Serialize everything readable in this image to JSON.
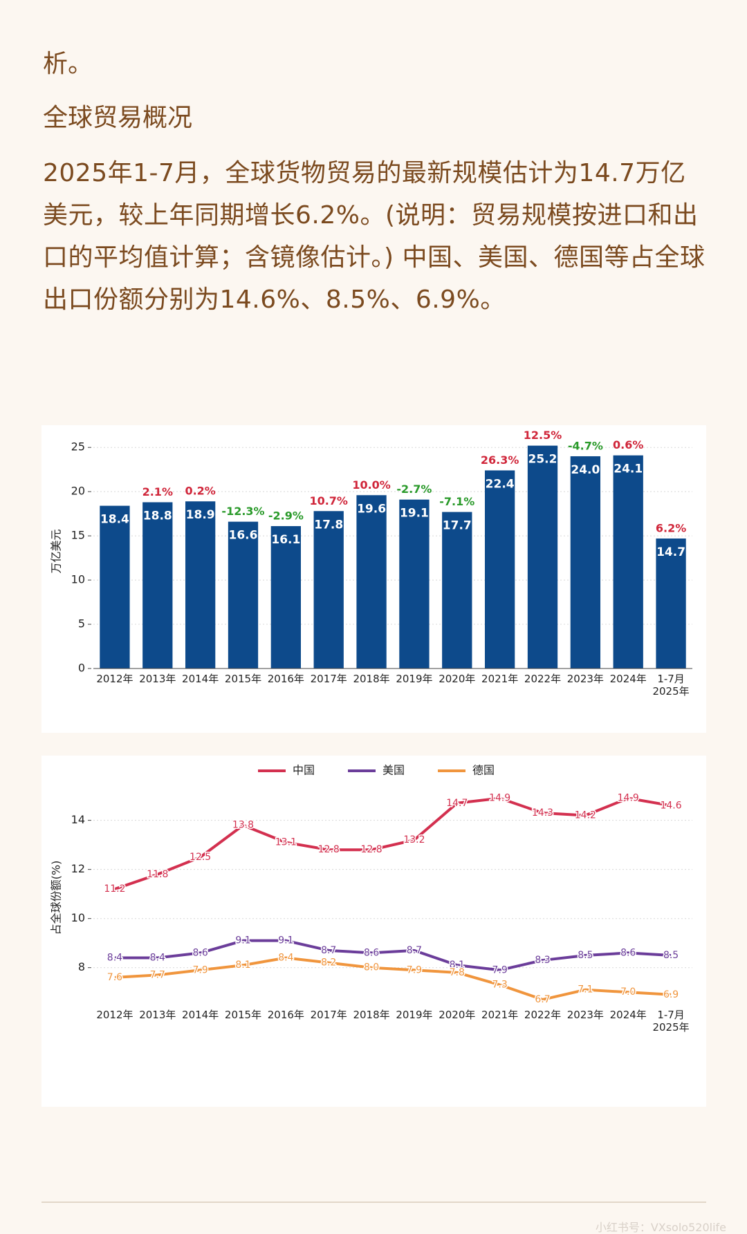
{
  "text": {
    "fragment": "析。",
    "heading": "全球贸易概况",
    "paragraph": "2025年1-7月，全球货物贸易的最新规模估计为14.7万亿美元，较上年同期增长6.2%。(说明：贸易规模按进口和出口的平均值计算；含镜像估计。) 中国、美国、德国等占全球出口份额分别为14.6%、8.5%、6.9%。"
  },
  "chart_data": [
    {
      "type": "bar",
      "ylabel": "万亿美元",
      "categories": [
        "2012年",
        "2013年",
        "2014年",
        "2015年",
        "2016年",
        "2017年",
        "2018年",
        "2019年",
        "2020年",
        "2021年",
        "2022年",
        "2023年",
        "2024年",
        "1-7月\n2025年"
      ],
      "values": [
        18.4,
        18.8,
        18.9,
        16.6,
        16.1,
        17.8,
        19.6,
        19.1,
        17.7,
        22.4,
        25.2,
        24.0,
        24.1,
        14.7
      ],
      "value_labels": [
        "18.4",
        "18.8",
        "18.9",
        "16.6",
        "16.1",
        "17.8",
        "19.6",
        "19.1",
        "17.7",
        "22.4",
        "25.2",
        "24.0",
        "24.1",
        "14.7"
      ],
      "growth": [
        null,
        2.1,
        0.2,
        -12.3,
        -2.9,
        10.7,
        10.0,
        -2.7,
        -7.1,
        26.3,
        12.5,
        -4.7,
        0.6,
        6.2
      ],
      "growth_labels": [
        null,
        "2.1%",
        "0.2%",
        "-12.3%",
        "-2.9%",
        "10.7%",
        "10.0%",
        "-2.7%",
        "-7.1%",
        "26.3%",
        "12.5%",
        "-4.7%",
        "0.6%",
        "6.2%"
      ],
      "color": "#0d4a8b",
      "positive_color": "#d0263a",
      "negative_color": "#2a9a2a",
      "ylim": [
        0,
        26.5
      ],
      "yticks": [
        0,
        5,
        10,
        15,
        20,
        25
      ],
      "grid": true
    },
    {
      "type": "line",
      "ylabel": "占全球份额(%)",
      "legend": "top",
      "categories": [
        "2012年",
        "2013年",
        "2014年",
        "2015年",
        "2016年",
        "2017年",
        "2018年",
        "2019年",
        "2020年",
        "2021年",
        "2022年",
        "2023年",
        "2024年",
        "1-7月\n2025年"
      ],
      "series": [
        {
          "name": "中国",
          "color": "#d3304f",
          "values": [
            11.2,
            11.8,
            12.5,
            13.8,
            13.1,
            12.8,
            12.8,
            13.2,
            14.7,
            14.9,
            14.3,
            14.2,
            14.9,
            14.6
          ],
          "value_labels": [
            "11.2",
            "11.8",
            "12.5",
            "13.8",
            "13.1",
            "12.8",
            "12.8",
            "13.2",
            "14.7",
            "14.9",
            "14.3",
            "14.2",
            "14.9",
            "14.6"
          ]
        },
        {
          "name": "美国",
          "color": "#6b3d9a",
          "values": [
            8.4,
            8.4,
            8.6,
            9.1,
            9.1,
            8.7,
            8.6,
            8.7,
            8.1,
            7.9,
            8.3,
            8.5,
            8.6,
            8.5
          ],
          "value_labels": [
            "8.4",
            "8.4",
            "8.6",
            "9.1",
            "9.1",
            "8.7",
            "8.6",
            "8.7",
            "8.1",
            "7.9",
            "8.3",
            "8.5",
            "8.6",
            "8.5"
          ]
        },
        {
          "name": "德国",
          "color": "#f0953d",
          "values": [
            7.6,
            7.7,
            7.9,
            8.1,
            8.4,
            8.2,
            8.0,
            7.9,
            7.8,
            7.3,
            6.7,
            7.1,
            7.0,
            6.9
          ],
          "value_labels": [
            "7.6",
            "7.7",
            "7.9",
            "8.1",
            "8.4",
            "8.2",
            "8.0",
            "7.9",
            "7.8",
            "7.3",
            "6.7",
            "7.1",
            "7.0",
            "6.9"
          ]
        }
      ],
      "ylim": [
        6.5,
        15.2
      ],
      "yticks": [
        8,
        10,
        12,
        14
      ],
      "grid": true
    }
  ],
  "watermark": "小红书号：VXsolo520life"
}
